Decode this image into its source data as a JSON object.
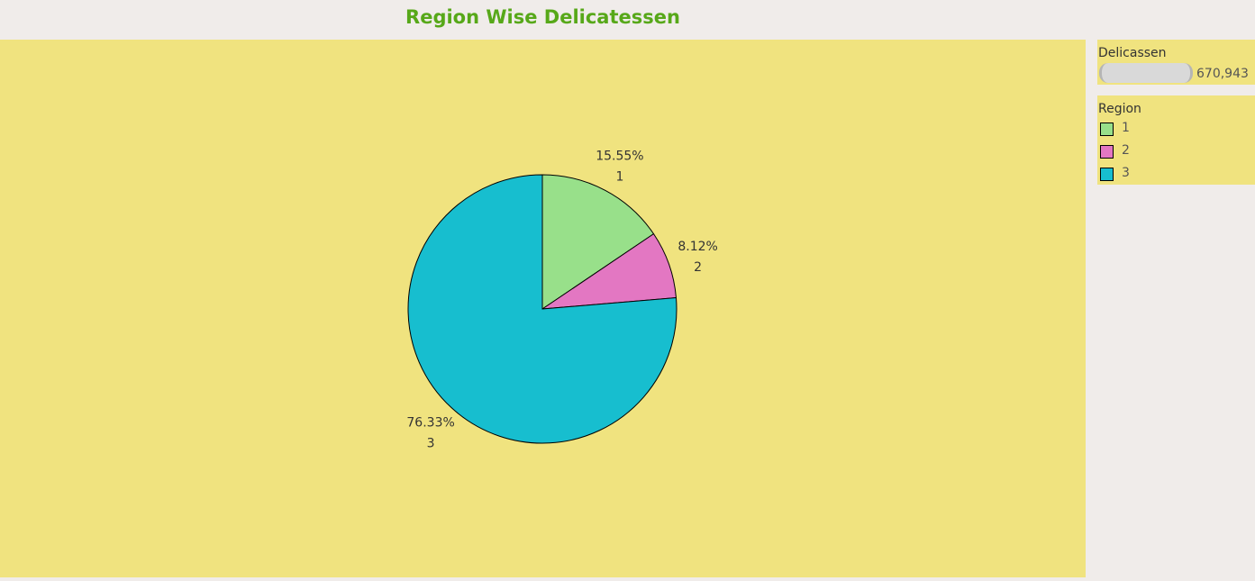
{
  "header": {
    "title": "Region Wise Delicatessen"
  },
  "chart_data": {
    "type": "pie",
    "title": "Region Wise Delicatessen",
    "categories": [
      "1",
      "2",
      "3"
    ],
    "values": [
      15.55,
      8.12,
      76.33
    ],
    "labels": [
      "15.55%",
      "8.12%",
      "76.33%"
    ],
    "colors": [
      "#98e08a",
      "#e377c2",
      "#17becf"
    ],
    "start_angle_deg": 0,
    "direction": "clockwise",
    "label_placement": "outside",
    "legend_placement": "right"
  },
  "sidebar": {
    "size_legend": {
      "title": "Delicassen",
      "max_value_label": "670,943"
    },
    "color_legend": {
      "title": "Region",
      "items": [
        {
          "label": "1",
          "color": "#98e08a"
        },
        {
          "label": "2",
          "color": "#e377c2"
        },
        {
          "label": "3",
          "color": "#17becf"
        }
      ]
    }
  }
}
